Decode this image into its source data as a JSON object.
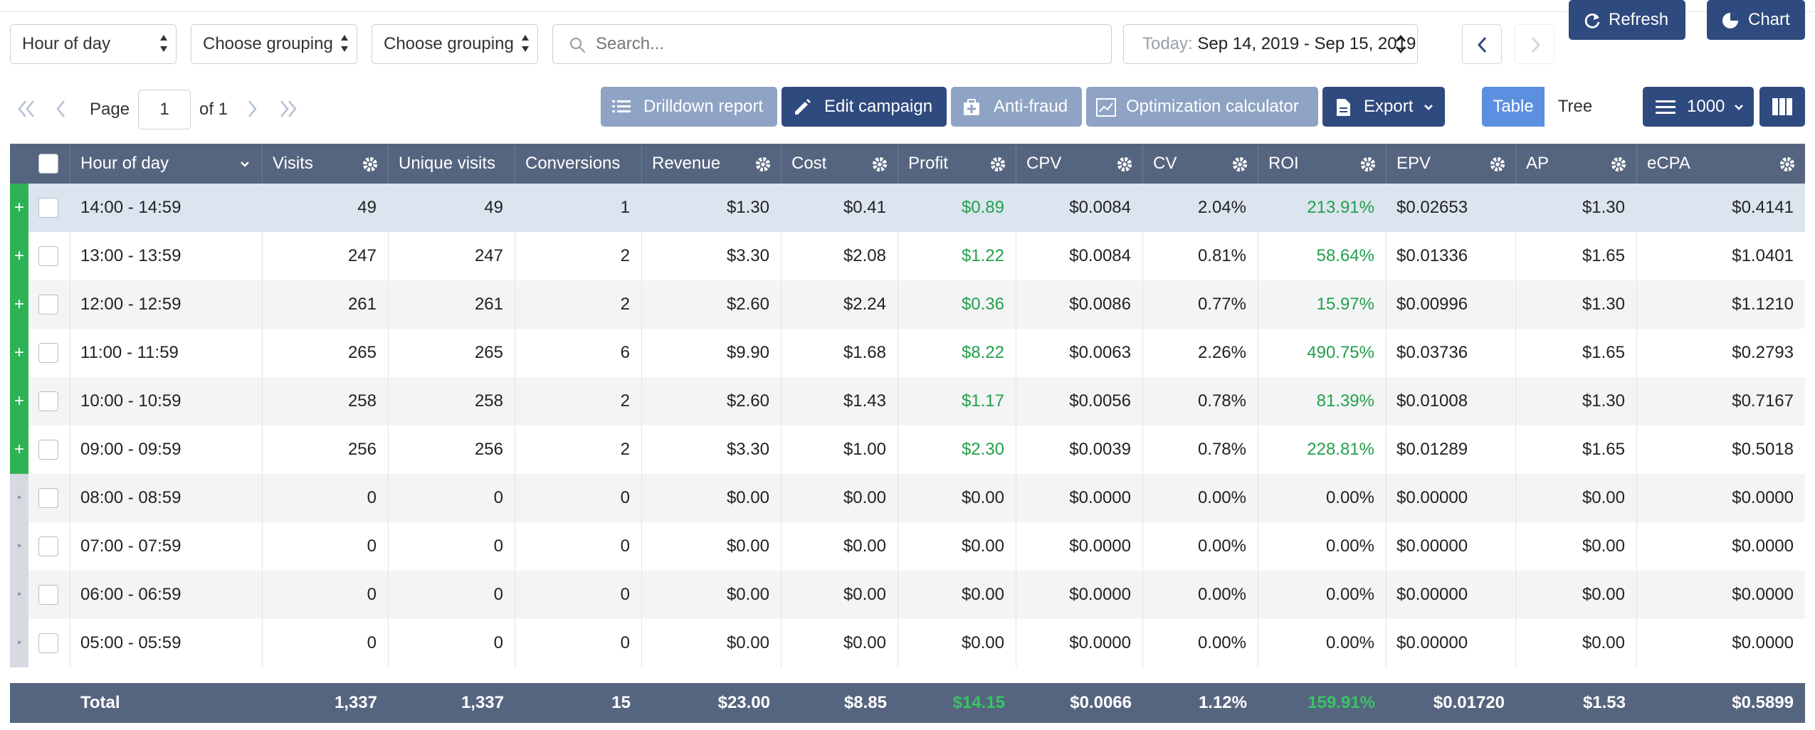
{
  "toolbar": {
    "grouping1": "Hour of day",
    "grouping2": "Choose grouping",
    "grouping3": "Choose grouping",
    "search_placeholder": "Search...",
    "date_prefix": "Today:",
    "date_range": "Sep 14, 2019 - Sep 15, 2019",
    "refresh_label": "Refresh",
    "chart_label": "Chart"
  },
  "pager": {
    "page_label": "Page",
    "page_value": "1",
    "of_label": "of 1"
  },
  "actions": {
    "drilldown": "Drilldown report",
    "edit_campaign": "Edit campaign",
    "anti_fraud": "Anti-fraud",
    "optimization": "Optimization calculator",
    "export": "Export",
    "view_table": "Table",
    "view_tree": "Tree",
    "page_size": "1000"
  },
  "columns": [
    "Hour of day",
    "Visits",
    "Unique visits",
    "Conversions",
    "Revenue",
    "Cost",
    "Profit",
    "CPV",
    "CV",
    "ROI",
    "EPV",
    "AP",
    "eCPA"
  ],
  "rows": [
    {
      "hour": "14:00 - 14:59",
      "visits": "49",
      "unique": "49",
      "conv": "1",
      "revenue": "$1.30",
      "cost": "$0.41",
      "profit": "$0.89",
      "cpv": "$0.0084",
      "cv": "2.04%",
      "roi": "213.91%",
      "epv": "$0.02653",
      "ap": "$1.30",
      "ecpa": "$0.4141",
      "expander": "+"
    },
    {
      "hour": "13:00 - 13:59",
      "visits": "247",
      "unique": "247",
      "conv": "2",
      "revenue": "$3.30",
      "cost": "$2.08",
      "profit": "$1.22",
      "cpv": "$0.0084",
      "cv": "0.81%",
      "roi": "58.64%",
      "epv": "$0.01336",
      "ap": "$1.65",
      "ecpa": "$1.0401",
      "expander": "+"
    },
    {
      "hour": "12:00 - 12:59",
      "visits": "261",
      "unique": "261",
      "conv": "2",
      "revenue": "$2.60",
      "cost": "$2.24",
      "profit": "$0.36",
      "cpv": "$0.0086",
      "cv": "0.77%",
      "roi": "15.97%",
      "epv": "$0.00996",
      "ap": "$1.30",
      "ecpa": "$1.1210",
      "expander": "+"
    },
    {
      "hour": "11:00 - 11:59",
      "visits": "265",
      "unique": "265",
      "conv": "6",
      "revenue": "$9.90",
      "cost": "$1.68",
      "profit": "$8.22",
      "cpv": "$0.0063",
      "cv": "2.26%",
      "roi": "490.75%",
      "epv": "$0.03736",
      "ap": "$1.65",
      "ecpa": "$0.2793",
      "expander": "+"
    },
    {
      "hour": "10:00 - 10:59",
      "visits": "258",
      "unique": "258",
      "conv": "2",
      "revenue": "$2.60",
      "cost": "$1.43",
      "profit": "$1.17",
      "cpv": "$0.0056",
      "cv": "0.78%",
      "roi": "81.39%",
      "epv": "$0.01008",
      "ap": "$1.30",
      "ecpa": "$0.7167",
      "expander": "+"
    },
    {
      "hour": "09:00 - 09:59",
      "visits": "256",
      "unique": "256",
      "conv": "2",
      "revenue": "$3.30",
      "cost": "$1.00",
      "profit": "$2.30",
      "cpv": "$0.0039",
      "cv": "0.78%",
      "roi": "228.81%",
      "epv": "$0.01289",
      "ap": "$1.65",
      "ecpa": "$0.5018",
      "expander": "+"
    },
    {
      "hour": "08:00 - 08:59",
      "visits": "0",
      "unique": "0",
      "conv": "0",
      "revenue": "$0.00",
      "cost": "$0.00",
      "profit": "$0.00",
      "cpv": "$0.0000",
      "cv": "0.00%",
      "roi": "0.00%",
      "epv": "$0.00000",
      "ap": "$0.00",
      "ecpa": "$0.0000",
      "expander": "•"
    },
    {
      "hour": "07:00 - 07:59",
      "visits": "0",
      "unique": "0",
      "conv": "0",
      "revenue": "$0.00",
      "cost": "$0.00",
      "profit": "$0.00",
      "cpv": "$0.0000",
      "cv": "0.00%",
      "roi": "0.00%",
      "epv": "$0.00000",
      "ap": "$0.00",
      "ecpa": "$0.0000",
      "expander": "•"
    },
    {
      "hour": "06:00 - 06:59",
      "visits": "0",
      "unique": "0",
      "conv": "0",
      "revenue": "$0.00",
      "cost": "$0.00",
      "profit": "$0.00",
      "cpv": "$0.0000",
      "cv": "0.00%",
      "roi": "0.00%",
      "epv": "$0.00000",
      "ap": "$0.00",
      "ecpa": "$0.0000",
      "expander": "•"
    },
    {
      "hour": "05:00 - 05:59",
      "visits": "0",
      "unique": "0",
      "conv": "0",
      "revenue": "$0.00",
      "cost": "$0.00",
      "profit": "$0.00",
      "cpv": "$0.0000",
      "cv": "0.00%",
      "roi": "0.00%",
      "epv": "$0.00000",
      "ap": "$0.00",
      "ecpa": "$0.0000",
      "expander": "•"
    }
  ],
  "totals": {
    "label": "Total",
    "visits": "1,337",
    "unique": "1,337",
    "conv": "15",
    "revenue": "$23.00",
    "cost": "$8.85",
    "profit": "$14.15",
    "cpv": "$0.0066",
    "cv": "1.12%",
    "roi": "159.91%",
    "epv": "$0.01720",
    "ap": "$1.53",
    "ecpa": "$0.5899"
  },
  "colors": {
    "accent": "#2f4a7e",
    "header_bg": "#56657f",
    "positive": "#22a04b",
    "expander_active": "#2fb256",
    "expander_inactive": "#d5dae1",
    "selected_row": "#dbe4ef"
  },
  "icons": [
    "search-icon",
    "chevron-left-icon",
    "chevron-right-icon",
    "refresh-icon",
    "pie-chart-icon",
    "first-page-icon",
    "prev-page-icon",
    "next-page-icon",
    "last-page-icon",
    "list-icon",
    "pencil-icon",
    "shield-plus-icon",
    "calculator-chart-icon",
    "document-icon",
    "chevron-down-icon",
    "menu-icon",
    "columns-icon",
    "gear-icon",
    "checkbox-icon"
  ]
}
